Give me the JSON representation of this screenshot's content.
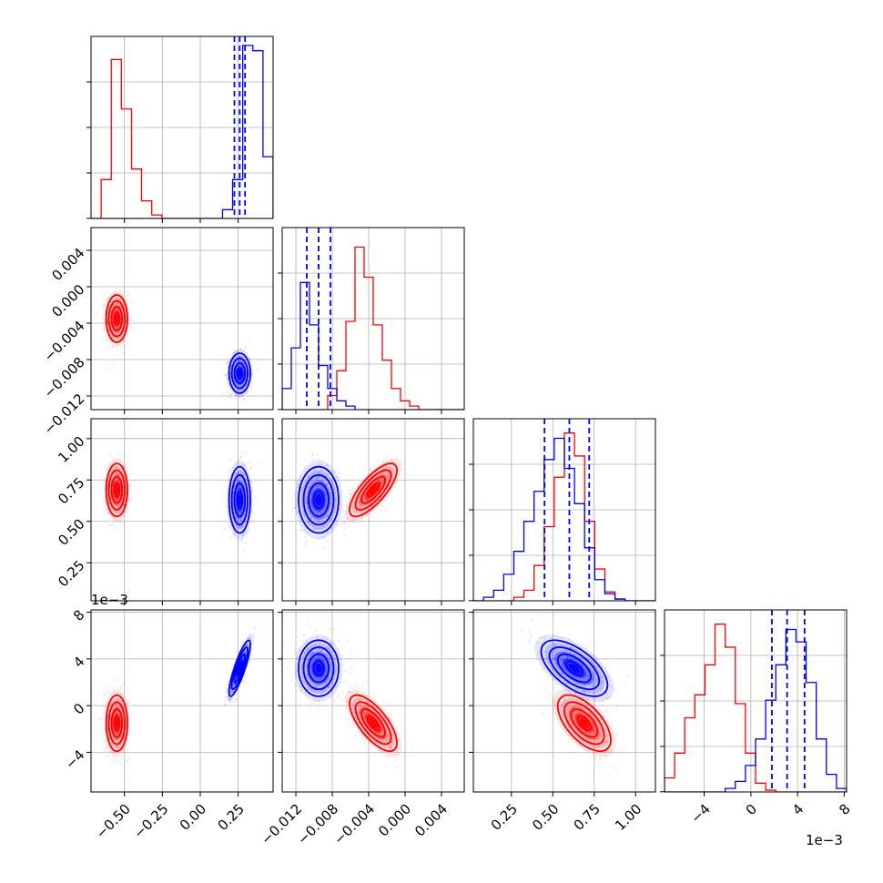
{
  "chart_data": {
    "type": "corner",
    "parameters": 4,
    "colors": {
      "red": "#ff0000",
      "blue": "#0000ff",
      "grid": "#b0b0b0"
    },
    "axes": {
      "p0": {
        "range": [
          -0.72,
          0.48
        ],
        "ticks": [
          -0.5,
          -0.25,
          0.0,
          0.25
        ],
        "tick_labels": [
          "−0.50",
          "−0.25",
          "0.00",
          "0.25"
        ]
      },
      "p1": {
        "range": [
          -0.0135,
          0.0065
        ],
        "ticks": [
          -0.012,
          -0.008,
          -0.004,
          0.0,
          0.004
        ],
        "tick_labels": [
          "−0.012",
          "−0.008",
          "−0.004",
          "0.000",
          "0.004"
        ]
      },
      "p2": {
        "range": [
          0.02,
          1.12
        ],
        "ticks": [
          0.25,
          0.5,
          0.75,
          1.0
        ],
        "tick_labels": [
          "0.25",
          "0.50",
          "0.75",
          "1.00"
        ]
      },
      "p3": {
        "range": [
          -0.0074,
          0.0082
        ],
        "ticks": [
          -0.004,
          0.0,
          0.004,
          0.008
        ],
        "tick_labels": [
          "−4",
          "0",
          "4",
          "8"
        ],
        "offset_label": "1e−3"
      }
    },
    "series": [
      {
        "name": "",
        "color": "#ff0000",
        "mean": [
          -0.55,
          -0.0035,
          0.69,
          -0.0015
        ],
        "std": [
          0.035,
          0.0013,
          0.08,
          0.0012
        ]
      },
      {
        "name": "",
        "color": "#0000ff",
        "mean": [
          0.26,
          -0.0095,
          0.63,
          0.0032
        ],
        "std": [
          0.035,
          0.0011,
          0.1,
          0.0012
        ]
      }
    ],
    "correlations": {
      "red": {
        "p0_p1": 0.0,
        "p0_p2": 0.0,
        "p0_p3": 0.0,
        "p1_p2": 0.75,
        "p1_p3": -0.7,
        "p2_p3": -0.6
      },
      "blue": {
        "p0_p1": 0.0,
        "p0_p2": 0.0,
        "p0_p3": 0.85,
        "p1_p2": 0.0,
        "p1_p3": 0.0,
        "p2_p3": -0.6
      }
    },
    "histograms": {
      "p0": {
        "red": [
          0,
          0.22,
          0.9,
          0.62,
          0.28,
          0.1,
          0.02,
          0,
          0,
          0,
          0,
          0,
          0,
          0,
          0,
          0,
          0,
          0
        ],
        "blue": [
          0,
          0,
          0,
          0,
          0,
          0,
          0,
          0,
          0,
          0,
          0,
          0,
          0,
          0.05,
          0.22,
          0.98,
          0.95,
          0.35
        ]
      },
      "p1": {
        "blue": [
          0.12,
          0.35,
          0.72,
          0.48,
          0.25,
          0.12,
          0.05,
          0.02,
          0,
          0,
          0,
          0,
          0,
          0,
          0,
          0,
          0,
          0,
          0,
          0
        ],
        "red": [
          0,
          0,
          0,
          0,
          0,
          0.08,
          0.22,
          0.5,
          0.92,
          0.75,
          0.48,
          0.28,
          0.12,
          0.05,
          0.02,
          0,
          0,
          0,
          0,
          0
        ]
      },
      "p2": {
        "blue": [
          0,
          0.02,
          0.06,
          0.15,
          0.28,
          0.45,
          0.62,
          0.8,
          0.92,
          0.75,
          0.55,
          0.3,
          0.12,
          0.04,
          0.01,
          0,
          0,
          0
        ],
        "red": [
          0,
          0,
          0,
          0,
          0.02,
          0.06,
          0.2,
          0.42,
          0.7,
          0.95,
          0.82,
          0.45,
          0.18,
          0.05,
          0.01,
          0,
          0,
          0
        ]
      },
      "p3": {
        "red": [
          0.08,
          0.22,
          0.42,
          0.55,
          0.72,
          0.95,
          0.82,
          0.5,
          0.22,
          0.05,
          0.01,
          0,
          0,
          0,
          0,
          0,
          0,
          0
        ],
        "blue": [
          0,
          0,
          0,
          0,
          0,
          0,
          0.02,
          0.06,
          0.15,
          0.3,
          0.52,
          0.72,
          0.92,
          0.85,
          0.62,
          0.3,
          0.1,
          0.02
        ]
      }
    },
    "quantile_lines_blue": {
      "p0": [
        0.225,
        0.26,
        0.295
      ],
      "p1": [
        -0.0108,
        -0.0095,
        -0.0082
      ],
      "p2": [
        0.45,
        0.6,
        0.72
      ],
      "p3": [
        0.0018,
        0.0031,
        0.0046
      ]
    },
    "grid": true
  }
}
